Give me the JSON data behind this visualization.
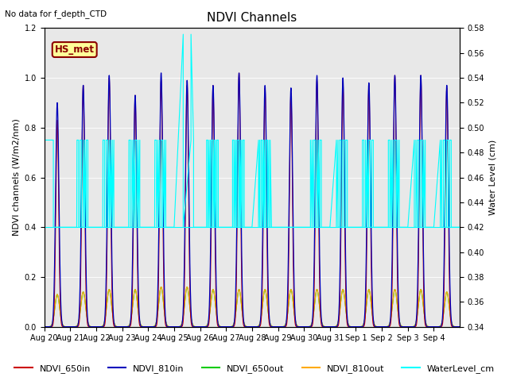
{
  "title": "NDVI Channels",
  "no_data_text": "No data for f_depth_CTD",
  "station_label": "HS_met",
  "ylabel_left": "NDVI channels (W/m2/nm)",
  "ylabel_right": "Water Level (cm)",
  "ylim_left": [
    0.0,
    1.2
  ],
  "ylim_right": [
    0.34,
    0.58
  ],
  "bg_color": "#e8e8e8",
  "legend_entries": [
    {
      "label": "NDVI_650in",
      "color": "#cc0000"
    },
    {
      "label": "NDVI_810in",
      "color": "#0000bb"
    },
    {
      "label": "NDVI_650out",
      "color": "#00cc00"
    },
    {
      "label": "NDVI_810out",
      "color": "#ffaa00"
    },
    {
      "label": "WaterLevel_cm",
      "color": "#00ffff"
    }
  ],
  "ndates": 16,
  "xtick_labels": [
    "Aug 20",
    "Aug 21",
    "Aug 22",
    "Aug 23",
    "Aug 24",
    "Aug 25",
    "Aug 26",
    "Aug 27",
    "Aug 28",
    "Aug 29",
    "Aug 30",
    "Aug 31",
    "Sep 1",
    "Sep 2",
    "Sep 3",
    "Sep 4"
  ],
  "ndvi_peaks_650in": [
    0.83,
    0.97,
    1.0,
    0.93,
    0.99,
    0.97,
    0.97,
    1.02,
    0.96,
    0.94,
    0.99,
    0.98,
    0.97,
    1.01,
    1.01,
    0.96
  ],
  "ndvi_peaks_810in": [
    0.9,
    0.97,
    1.01,
    0.93,
    1.02,
    0.99,
    0.97,
    1.02,
    0.97,
    0.96,
    1.01,
    1.0,
    0.98,
    1.01,
    1.01,
    0.97
  ],
  "ndvi_peaks_650out": [
    0.13,
    0.14,
    0.15,
    0.15,
    0.16,
    0.16,
    0.15,
    0.15,
    0.15,
    0.15,
    0.15,
    0.15,
    0.15,
    0.15,
    0.15,
    0.14
  ],
  "ndvi_peaks_810out": [
    0.13,
    0.14,
    0.15,
    0.15,
    0.16,
    0.16,
    0.15,
    0.15,
    0.15,
    0.15,
    0.15,
    0.15,
    0.15,
    0.15,
    0.15,
    0.14
  ],
  "water_level_base": 0.42,
  "water_level_high": 0.49,
  "water_level_spike": 0.575,
  "spike_day": 5,
  "figsize": [
    6.4,
    4.8
  ],
  "dpi": 100
}
